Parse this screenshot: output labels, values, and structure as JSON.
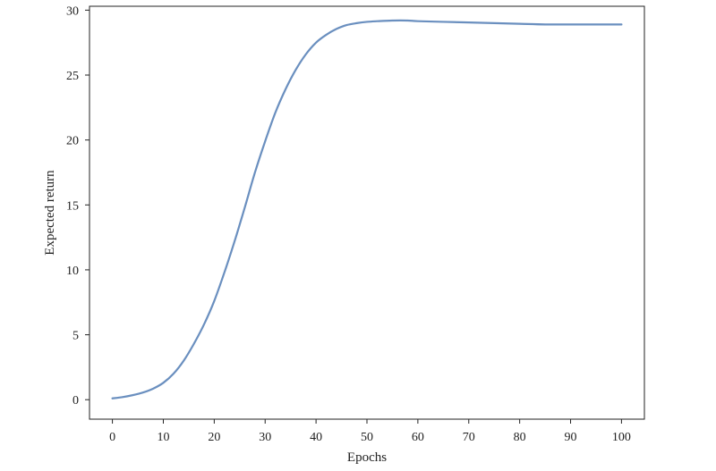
{
  "chart_data": {
    "type": "line",
    "title": "",
    "xlabel": "Epochs",
    "ylabel": "Expected return",
    "xlim": [
      -4.5,
      104.5
    ],
    "ylim": [
      -1.5,
      30.3
    ],
    "xticks": [
      0,
      10,
      20,
      30,
      40,
      50,
      60,
      70,
      80,
      90,
      100
    ],
    "yticks": [
      0,
      5,
      10,
      15,
      20,
      25,
      30
    ],
    "grid": false,
    "line_color": "#6a8fbf",
    "series": [
      {
        "x": [
          0,
          2,
          4,
          6,
          8,
          10,
          12,
          14,
          16,
          18,
          20,
          22,
          24,
          26,
          28,
          30,
          32,
          34,
          36,
          38,
          40,
          42,
          44,
          46,
          48,
          50,
          52,
          55,
          58,
          60,
          65,
          70,
          75,
          80,
          85,
          90,
          95,
          100
        ],
        "y": [
          0.1,
          0.2,
          0.35,
          0.55,
          0.85,
          1.3,
          2.0,
          3.0,
          4.3,
          5.8,
          7.6,
          9.8,
          12.2,
          14.8,
          17.5,
          19.9,
          22.1,
          23.9,
          25.4,
          26.6,
          27.5,
          28.1,
          28.55,
          28.85,
          29.0,
          29.1,
          29.15,
          29.2,
          29.2,
          29.15,
          29.1,
          29.05,
          29.0,
          28.95,
          28.9,
          28.9,
          28.9,
          28.9
        ]
      }
    ]
  }
}
